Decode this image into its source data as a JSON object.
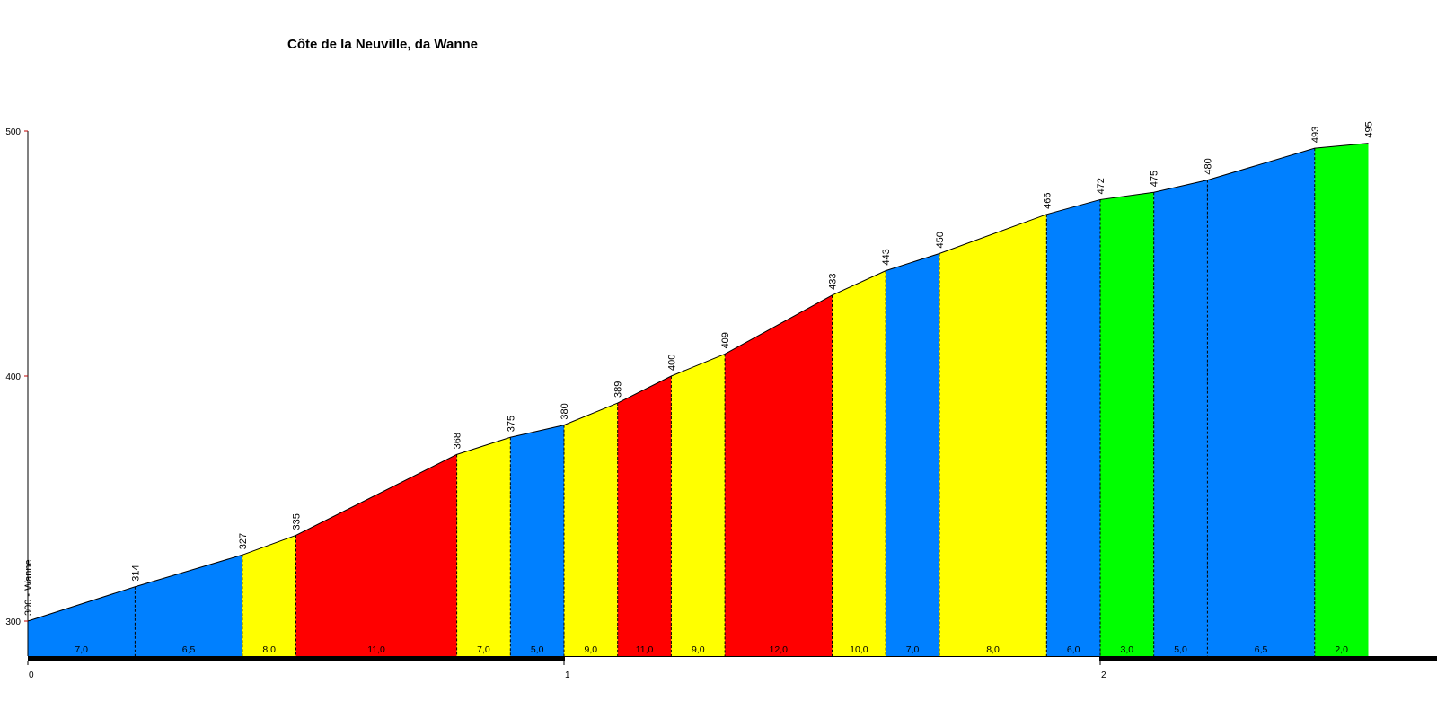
{
  "chart_data": {
    "type": "area",
    "title": "Côte de la Neuville, da Wanne",
    "xlabel": "",
    "ylabel": "",
    "xlim": [
      0,
      2.66
    ],
    "ylim": [
      285,
      500
    ],
    "y_ticks": [
      "300",
      "400",
      "500"
    ],
    "x_ticks": [
      "0",
      "1",
      "2"
    ],
    "start_label": "300 - Wanne",
    "points": [
      {
        "km": 0.0,
        "alt": 300,
        "label": "300 - Wanne"
      },
      {
        "km": 0.2,
        "alt": 314,
        "label": "314"
      },
      {
        "km": 0.4,
        "alt": 327,
        "label": "327"
      },
      {
        "km": 0.5,
        "alt": 335,
        "label": "335"
      },
      {
        "km": 0.8,
        "alt": 368,
        "label": "368"
      },
      {
        "km": 0.9,
        "alt": 375,
        "label": "375"
      },
      {
        "km": 1.0,
        "alt": 380,
        "label": "380"
      },
      {
        "km": 1.1,
        "alt": 389,
        "label": "389"
      },
      {
        "km": 1.2,
        "alt": 400,
        "label": "400"
      },
      {
        "km": 1.3,
        "alt": 409,
        "label": "409"
      },
      {
        "km": 1.5,
        "alt": 433,
        "label": "433"
      },
      {
        "km": 1.6,
        "alt": 443,
        "label": "443"
      },
      {
        "km": 1.7,
        "alt": 450,
        "label": "450"
      },
      {
        "km": 1.9,
        "alt": 466,
        "label": "466"
      },
      {
        "km": 2.0,
        "alt": 472,
        "label": "472"
      },
      {
        "km": 2.1,
        "alt": 475,
        "label": "475"
      },
      {
        "km": 2.2,
        "alt": 480,
        "label": "480"
      },
      {
        "km": 2.4,
        "alt": 493,
        "label": "493"
      },
      {
        "km": 2.5,
        "alt": 495,
        "label": "495"
      }
    ],
    "segments": [
      {
        "gradient": "7,0",
        "color": "#0080ff"
      },
      {
        "gradient": "6,5",
        "color": "#0080ff"
      },
      {
        "gradient": "8,0",
        "color": "#ffff00"
      },
      {
        "gradient": "11,0",
        "color": "#ff0000"
      },
      {
        "gradient": "7,0",
        "color": "#ffff00"
      },
      {
        "gradient": "5,0",
        "color": "#0080ff"
      },
      {
        "gradient": "9,0",
        "color": "#ffff00"
      },
      {
        "gradient": "11,0",
        "color": "#ff0000"
      },
      {
        "gradient": "9,0",
        "color": "#ffff00"
      },
      {
        "gradient": "12,0",
        "color": "#ff0000"
      },
      {
        "gradient": "10,0",
        "color": "#ffff00"
      },
      {
        "gradient": "7,0",
        "color": "#0080ff"
      },
      {
        "gradient": "8,0",
        "color": "#ffff00"
      },
      {
        "gradient": "6,0",
        "color": "#0080ff"
      },
      {
        "gradient": "3,0",
        "color": "#00ff00"
      },
      {
        "gradient": "5,0",
        "color": "#0080ff"
      },
      {
        "gradient": "6,5",
        "color": "#0080ff"
      },
      {
        "gradient": "2,0",
        "color": "#00ff00"
      }
    ]
  }
}
